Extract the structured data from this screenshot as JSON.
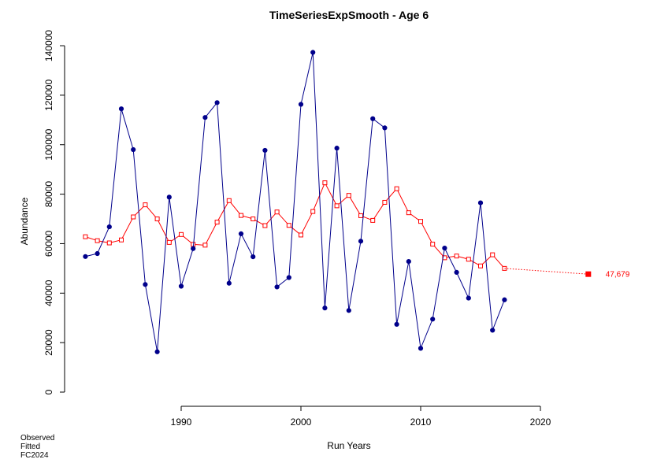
{
  "chart_data": {
    "type": "line",
    "title": "TimeSeriesExpSmooth - Age 6",
    "xlabel": "Run Years",
    "ylabel": "Abundance",
    "xlim": [
      1982,
      2024
    ],
    "ylim": [
      0,
      140000
    ],
    "x_ticks": [
      1990,
      2000,
      2010,
      2020
    ],
    "y_ticks": [
      0,
      20000,
      40000,
      60000,
      80000,
      100000,
      120000,
      140000
    ],
    "grid": false,
    "colors": {
      "observed": "#00008B",
      "fitted": "#FF0000",
      "forecast": "#FF0000"
    },
    "series": [
      {
        "name": "Observed",
        "x": [
          1982,
          1983,
          1984,
          1985,
          1986,
          1987,
          1988,
          1989,
          1990,
          1991,
          1992,
          1993,
          1994,
          1995,
          1996,
          1997,
          1998,
          1999,
          2000,
          2001,
          2002,
          2003,
          2004,
          2005,
          2006,
          2007,
          2008,
          2009,
          2010,
          2011,
          2012,
          2013,
          2014,
          2015,
          2016,
          2017
        ],
        "values": [
          54800,
          56000,
          66800,
          114500,
          98000,
          43500,
          16300,
          78800,
          42800,
          58000,
          111000,
          117000,
          44000,
          64000,
          54700,
          97700,
          42500,
          46300,
          116300,
          137300,
          34000,
          98600,
          33000,
          61000,
          110500,
          106800,
          27400,
          52800,
          17700,
          29500,
          58200,
          48400,
          38000,
          76500,
          25000,
          37300
        ]
      },
      {
        "name": "Fitted",
        "x": [
          1982,
          1983,
          1984,
          1985,
          1986,
          1987,
          1988,
          1989,
          1990,
          1991,
          1992,
          1993,
          1994,
          1995,
          1996,
          1997,
          1998,
          1999,
          2000,
          2001,
          2002,
          2003,
          2004,
          2005,
          2006,
          2007,
          2008,
          2009,
          2010,
          2011,
          2012,
          2013,
          2014,
          2015,
          2016,
          2017
        ],
        "values": [
          62800,
          61200,
          60300,
          61500,
          70800,
          75700,
          70000,
          60500,
          63700,
          59700,
          59400,
          68700,
          77400,
          71400,
          70000,
          67300,
          72800,
          67400,
          63500,
          73000,
          84600,
          75300,
          79500,
          71300,
          69400,
          76700,
          82200,
          72500,
          69000,
          59800,
          54300,
          55000,
          53700,
          51000,
          55500,
          50000
        ]
      }
    ],
    "forecast": {
      "x": 2024,
      "value": 47679,
      "label": "47,679"
    },
    "legend": {
      "placement": "bottom-left",
      "lines": [
        "Observed",
        "Fitted",
        "FC2024"
      ]
    }
  }
}
